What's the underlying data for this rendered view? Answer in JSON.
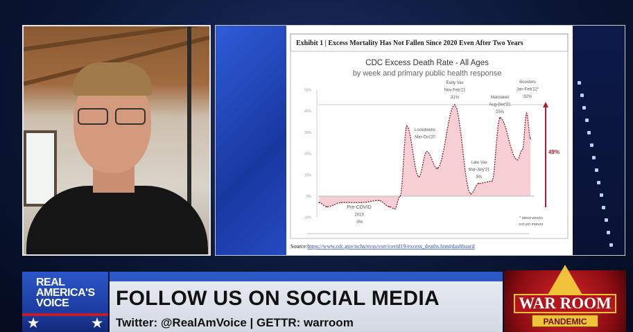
{
  "colors": {
    "accent_blue": "#2d58c4",
    "accent_red": "#c21d2c",
    "chart_fill": "#f4c7cc",
    "chart_line": "#8b1a2a"
  },
  "exhibit_title": "Exhibit 1 | Excess Mortality Has Not Fallen Since 2020 Even After Two Years",
  "source": {
    "label": "Source:",
    "url": "https://www.cdc.gov/nchs/nvss/vsrr/covid19/excess_deaths.htm#dashboard"
  },
  "chart_data": {
    "type": "area",
    "title": "CDC Excess Death Rate - All Ages",
    "subtitle": "by week and primary public health response",
    "ylabel": "",
    "xlabel": "",
    "ylim": [
      -10,
      50
    ],
    "yticks": [
      "50%",
      "40%",
      "30%",
      "20%",
      "10%",
      "0%",
      "-10%"
    ],
    "xlim": [
      "2019-01-01",
      "2022-02-12"
    ],
    "points": [
      [
        "2019-01-05",
        -3
      ],
      [
        "2019-02-16",
        -5
      ],
      [
        "2019-05-04",
        -3
      ],
      [
        "2019-08-17",
        -3
      ],
      [
        "2019-11-16",
        -2
      ],
      [
        "2020-01-11",
        -5
      ],
      [
        "2020-02-08",
        -6
      ],
      [
        "2020-03-07",
        0
      ],
      [
        "2020-04-11",
        33
      ],
      [
        "2020-06-13",
        9
      ],
      [
        "2020-07-25",
        21
      ],
      [
        "2020-09-19",
        13
      ],
      [
        "2020-12-19",
        43
      ],
      [
        "2021-03-13",
        1
      ],
      [
        "2021-04-24",
        6
      ],
      [
        "2021-07-03",
        7
      ],
      [
        "2021-08-14",
        37
      ],
      [
        "2021-11-13",
        17
      ],
      [
        "2021-12-11",
        22
      ],
      [
        "2022-01-01",
        39
      ],
      [
        "2022-01-22",
        27
      ]
    ],
    "annotations": [
      {
        "lines": [
          "Pre-COVID",
          "2019",
          "-3%"
        ]
      },
      {
        "lines": [
          "Lockdowns",
          "Mar-Oct'20"
        ]
      },
      {
        "lines": [
          "Early Vax",
          "Nov-Feb'21",
          "31%"
        ]
      },
      {
        "lines": [
          "Late Vax",
          "Mar-July'21",
          "5%"
        ]
      },
      {
        "lines": [
          "Mandates",
          "Aug-Dec'21",
          "25%"
        ]
      },
      {
        "lines": [
          "Boosters",
          "Jan-Feb'22*",
          "32%"
        ]
      }
    ],
    "arrow_label": "49%",
    "footnote": [
      "* latest weeks",
      "not yet mature"
    ],
    "grid": false
  },
  "banner": {
    "network_logo": [
      "REAL",
      "AMERICA'S",
      "VOICE"
    ],
    "headline": "FOLLOW US ON SOCIAL MEDIA",
    "subline": "Twitter: @RealAmVoice | GETTR: warroom",
    "show_logo": {
      "title": "WAR ROOM",
      "subtitle": "PANDEMIC"
    }
  }
}
